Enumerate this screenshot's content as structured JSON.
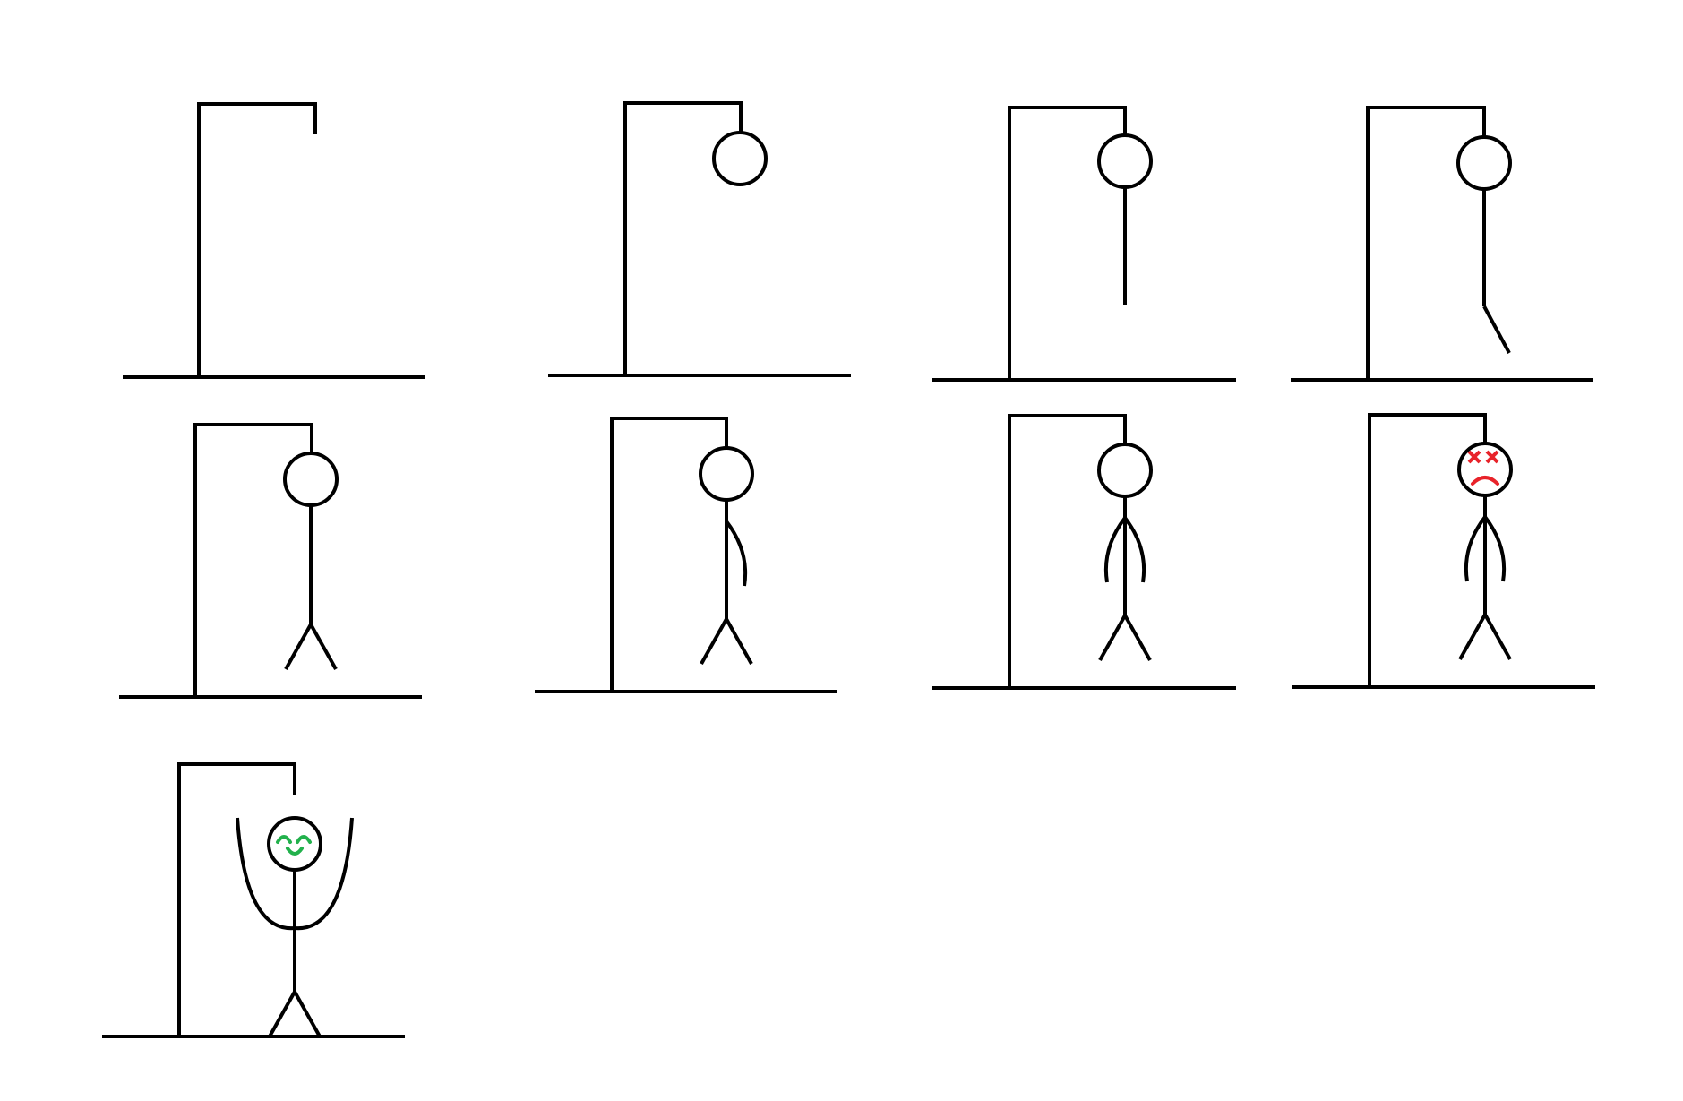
{
  "title": "",
  "colors": {
    "background": "#ffffff",
    "ink": "#000000",
    "dead_face": "#e8232a",
    "happy_face": "#22b14c"
  },
  "stages": [
    {
      "id": 1,
      "parts": [
        "gallows",
        "rope"
      ],
      "face": "none",
      "pose": "none"
    },
    {
      "id": 2,
      "parts": [
        "gallows",
        "head"
      ],
      "face": "none",
      "pose": "hanging"
    },
    {
      "id": 3,
      "parts": [
        "gallows",
        "head",
        "body"
      ],
      "face": "none",
      "pose": "hanging"
    },
    {
      "id": 4,
      "parts": [
        "gallows",
        "head",
        "body",
        "left-leg"
      ],
      "face": "none",
      "pose": "hanging"
    },
    {
      "id": 5,
      "parts": [
        "gallows",
        "head",
        "body",
        "left-leg",
        "right-leg"
      ],
      "face": "none",
      "pose": "hanging"
    },
    {
      "id": 6,
      "parts": [
        "gallows",
        "head",
        "body",
        "left-leg",
        "right-leg",
        "right-arm"
      ],
      "face": "none",
      "pose": "hanging"
    },
    {
      "id": 7,
      "parts": [
        "gallows",
        "head",
        "body",
        "left-leg",
        "right-leg",
        "right-arm",
        "left-arm"
      ],
      "face": "none",
      "pose": "hanging"
    },
    {
      "id": 8,
      "parts": [
        "gallows",
        "head",
        "body",
        "left-leg",
        "right-leg",
        "right-arm",
        "left-arm"
      ],
      "face": "dead",
      "pose": "hanging"
    },
    {
      "id": 9,
      "parts": [
        "gallows",
        "rope",
        "head",
        "body",
        "left-leg",
        "right-leg",
        "raised-arms"
      ],
      "face": "happy",
      "pose": "freed"
    }
  ]
}
